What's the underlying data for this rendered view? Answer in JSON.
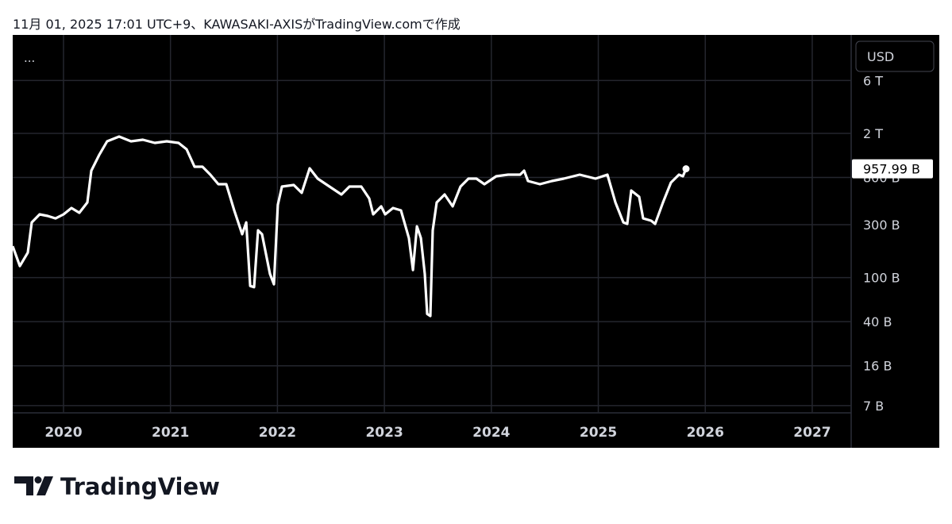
{
  "header": "11月 01, 2025 17:01 UTC+9、KAWASAKI-AXISがTradingView.comで作成",
  "menu": "...",
  "currency_button": "USD",
  "footer": {
    "brand": "TradingView"
  },
  "chart_data": {
    "type": "line",
    "log_scale": true,
    "grid": true,
    "xlim": [
      2019.525,
      2027.364
    ],
    "xticks": [
      2020,
      2021,
      2022,
      2023,
      2024,
      2025,
      2026,
      2027
    ],
    "ylim": [
      6.02,
      15460
    ],
    "yticks": [
      {
        "value": 6000,
        "label": "6 T"
      },
      {
        "value": 2000,
        "label": "2 T"
      },
      {
        "value": 800,
        "label": "800 B"
      },
      {
        "value": 300,
        "label": "300 B"
      },
      {
        "value": 100,
        "label": "100 B"
      },
      {
        "value": 40,
        "label": "40 B"
      },
      {
        "value": 16,
        "label": "16 B"
      },
      {
        "value": 7,
        "label": "7 B"
      }
    ],
    "x": [
      2019.525,
      2019.592,
      2019.666,
      2019.703,
      2019.777,
      2019.852,
      2019.926,
      2020.0,
      2020.074,
      2020.148,
      2020.223,
      2020.26,
      2020.334,
      2020.408,
      2020.52,
      2020.631,
      2020.742,
      2020.854,
      2020.965,
      2021.076,
      2021.151,
      2021.225,
      2021.299,
      2021.373,
      2021.448,
      2021.522,
      2021.596,
      2021.67,
      2021.708,
      2021.745,
      2021.782,
      2021.819,
      2021.856,
      2021.93,
      2021.967,
      2022.004,
      2022.042,
      2022.153,
      2022.227,
      2022.301,
      2022.376,
      2022.487,
      2022.598,
      2022.673,
      2022.784,
      2022.858,
      2022.895,
      2022.97,
      2023.007,
      2023.081,
      2023.155,
      2023.229,
      2023.267,
      2023.304,
      2023.341,
      2023.378,
      2023.4,
      2023.43,
      2023.452,
      2023.489,
      2023.563,
      2023.638,
      2023.712,
      2023.786,
      2023.86,
      2023.935,
      2024.046,
      2024.157,
      2024.269,
      2024.306,
      2024.343,
      2024.454,
      2024.566,
      2024.677,
      2024.826,
      2024.974,
      2025.085,
      2025.16,
      2025.234,
      2025.271,
      2025.308,
      2025.382,
      2025.419,
      2025.494,
      2025.531,
      2025.605,
      2025.679,
      2025.754,
      2025.791,
      2025.82
    ],
    "series": [
      {
        "name": "KAWASAKI-AXIS",
        "color": "#ffffff",
        "values": [
          192,
          127,
          168,
          315,
          372,
          360,
          342,
          372,
          424,
          384,
          476,
          921,
          1281,
          1696,
          1872,
          1696,
          1752,
          1640,
          1696,
          1640,
          1438,
          1000,
          1000,
          848,
          696,
          696,
          404,
          246,
          315,
          84,
          82,
          267,
          246,
          108,
          87,
          453,
          662,
          685,
          581,
          968,
          781,
          662,
          562,
          662,
          662,
          517,
          372,
          439,
          372,
          424,
          404,
          227,
          117,
          290,
          227,
          108,
          47,
          45,
          267,
          476,
          562,
          439,
          662,
          781,
          781,
          696,
          821,
          848,
          848,
          921,
          743,
          696,
          743,
          781,
          848,
          781,
          848,
          476,
          315,
          305,
          610,
          535,
          342,
          326,
          305,
          476,
          719,
          848,
          821,
          957.99
        ],
        "value_labels": [
          null,
          null,
          null,
          null,
          null,
          null,
          null,
          null,
          null,
          null,
          null,
          null,
          null,
          null,
          null,
          null,
          null,
          null,
          null,
          null,
          null,
          null,
          null,
          null,
          null,
          null,
          null,
          null,
          null,
          null,
          null,
          null,
          null,
          null,
          null,
          null,
          null,
          null,
          null,
          null,
          null,
          null,
          null,
          null,
          null,
          null,
          null,
          null,
          null,
          null,
          null,
          null,
          null,
          null,
          null,
          null,
          null,
          null,
          null,
          null,
          null,
          null,
          null,
          null,
          null,
          null,
          null,
          null,
          null,
          null,
          null,
          null,
          null,
          null,
          null,
          null,
          null,
          null,
          null,
          null,
          null,
          null,
          null,
          null,
          null,
          null,
          null,
          null,
          null,
          "957.99 B"
        ]
      }
    ]
  }
}
